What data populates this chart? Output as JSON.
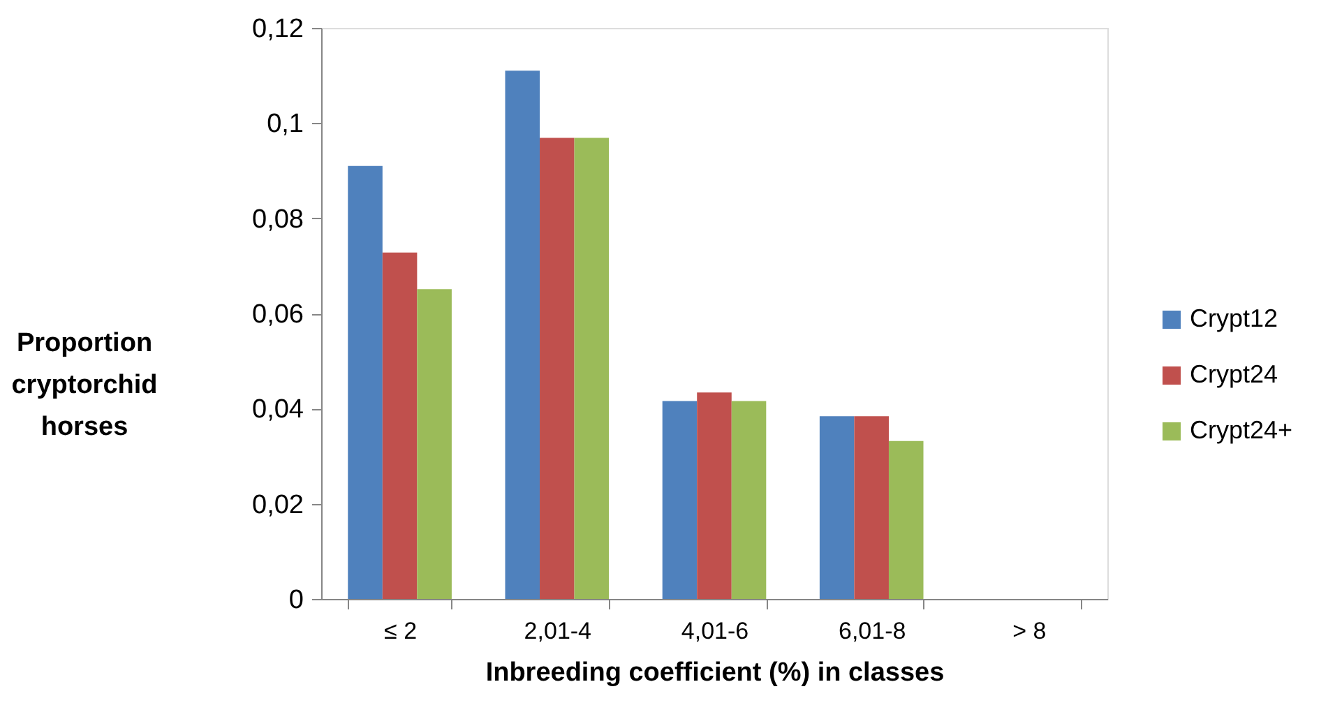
{
  "chart_data": {
    "type": "bar",
    "xlabel": "Inbreeding coefficient (%) in classes",
    "ylabel": "Proportion cryptorchid horses",
    "categories": [
      "≤ 2",
      "2,01-4",
      "4,01-6",
      "6,01-8",
      "> 8"
    ],
    "series": [
      {
        "name": "Crypt12",
        "color": "#4f81bd",
        "values": [
          0.091,
          0.111,
          0.0416,
          0.0384,
          0
        ]
      },
      {
        "name": "Crypt24",
        "color": "#c0504d",
        "values": [
          0.0728,
          0.0969,
          0.0434,
          0.0384,
          0
        ]
      },
      {
        "name": "Crypt24+",
        "color": "#9bbb59",
        "values": [
          0.0651,
          0.0969,
          0.0416,
          0.0332,
          0
        ]
      }
    ],
    "ylim": [
      0,
      0.12
    ],
    "yticks": [
      {
        "value": 0,
        "label": "0"
      },
      {
        "value": 0.02,
        "label": "0,02"
      },
      {
        "value": 0.04,
        "label": "0,04"
      },
      {
        "value": 0.06,
        "label": "0,06"
      },
      {
        "value": 0.08,
        "label": "0,08"
      },
      {
        "value": 0.1,
        "label": "0,1"
      },
      {
        "value": 0.12,
        "label": "0,12"
      }
    ],
    "grid": false,
    "legend": "right"
  }
}
